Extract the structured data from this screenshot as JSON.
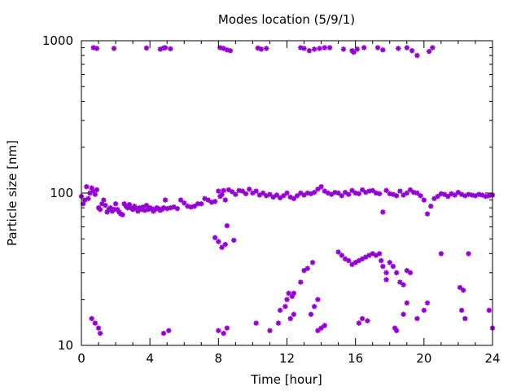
{
  "chart_data": {
    "type": "scatter",
    "title": "Modes location (5/9/1)",
    "xlabel": "Time [hour]",
    "ylabel": "Particle size [nm]",
    "xlim": [
      0,
      24
    ],
    "ylim": [
      10,
      1000
    ],
    "yscale": "log",
    "x_ticks": [
      0,
      4,
      8,
      12,
      16,
      20,
      24
    ],
    "x_tick_labels": [
      "0",
      "4",
      "8",
      "12",
      "16",
      "20",
      "24"
    ],
    "y_ticks": [
      10,
      100,
      1000
    ],
    "y_tick_labels": [
      "10",
      "100",
      "1000"
    ],
    "grid": false,
    "legend": "none",
    "marker_color": "#9400d3",
    "series": [
      {
        "points": [
          [
            0.7,
            900
          ],
          [
            0.9,
            890
          ],
          [
            1.9,
            890
          ],
          [
            3.8,
            895
          ],
          [
            4.6,
            880
          ],
          [
            4.8,
            895
          ],
          [
            4.9,
            900
          ],
          [
            5.2,
            885
          ],
          [
            8.1,
            900
          ],
          [
            8.3,
            890
          ],
          [
            8.5,
            870
          ],
          [
            8.7,
            860
          ],
          [
            10.3,
            895
          ],
          [
            10.5,
            880
          ],
          [
            10.8,
            890
          ],
          [
            12.8,
            900
          ],
          [
            13.0,
            890
          ],
          [
            13.3,
            860
          ],
          [
            13.6,
            880
          ],
          [
            13.9,
            890
          ],
          [
            14.2,
            900
          ],
          [
            14.5,
            900
          ],
          [
            15.3,
            880
          ],
          [
            15.8,
            860
          ],
          [
            15.9,
            840
          ],
          [
            16.1,
            880
          ],
          [
            16.5,
            900
          ],
          [
            17.3,
            900
          ],
          [
            17.6,
            870
          ],
          [
            18.5,
            890
          ],
          [
            19.0,
            900
          ],
          [
            19.3,
            860
          ],
          [
            19.6,
            800
          ],
          [
            20.3,
            850
          ],
          [
            20.5,
            900
          ],
          [
            0.0,
            95
          ],
          [
            0.1,
            85
          ],
          [
            0.2,
            90
          ],
          [
            0.3,
            110
          ],
          [
            0.4,
            92
          ],
          [
            0.5,
            100
          ],
          [
            0.6,
            108
          ],
          [
            0.7,
            103
          ],
          [
            0.8,
            98
          ],
          [
            0.9,
            105
          ],
          [
            1.0,
            80
          ],
          [
            1.1,
            78
          ],
          [
            1.2,
            85
          ],
          [
            1.3,
            90
          ],
          [
            1.4,
            83
          ],
          [
            1.5,
            75
          ],
          [
            1.6,
            78
          ],
          [
            1.7,
            80
          ],
          [
            1.8,
            76
          ],
          [
            1.9,
            78
          ],
          [
            2.0,
            85
          ],
          [
            2.1,
            78
          ],
          [
            2.2,
            75
          ],
          [
            2.3,
            73
          ],
          [
            2.4,
            72
          ],
          [
            2.5,
            85
          ],
          [
            2.6,
            82
          ],
          [
            2.7,
            80
          ],
          [
            2.8,
            84
          ],
          [
            2.9,
            80
          ],
          [
            3.0,
            78
          ],
          [
            3.1,
            82
          ],
          [
            3.2,
            79
          ],
          [
            3.3,
            76
          ],
          [
            3.4,
            80
          ],
          [
            3.5,
            78
          ],
          [
            3.6,
            81
          ],
          [
            3.7,
            77
          ],
          [
            3.8,
            83
          ],
          [
            3.9,
            78
          ],
          [
            4.0,
            80
          ],
          [
            4.1,
            79
          ],
          [
            4.2,
            76
          ],
          [
            4.3,
            78
          ],
          [
            4.4,
            80
          ],
          [
            4.5,
            79
          ],
          [
            4.6,
            77
          ],
          [
            4.7,
            78
          ],
          [
            4.8,
            80
          ],
          [
            4.9,
            90
          ],
          [
            5.0,
            79
          ],
          [
            5.2,
            80
          ],
          [
            5.4,
            81
          ],
          [
            5.6,
            79
          ],
          [
            5.8,
            90
          ],
          [
            6.0,
            86
          ],
          [
            6.2,
            82
          ],
          [
            6.4,
            81
          ],
          [
            6.6,
            82
          ],
          [
            6.8,
            85
          ],
          [
            7.0,
            85
          ],
          [
            7.2,
            92
          ],
          [
            7.4,
            90
          ],
          [
            7.6,
            87
          ],
          [
            7.8,
            88
          ],
          [
            8.0,
            103
          ],
          [
            8.1,
            95
          ],
          [
            8.2,
            98
          ],
          [
            8.3,
            104
          ],
          [
            8.4,
            90
          ],
          [
            8.6,
            105
          ],
          [
            8.8,
            102
          ],
          [
            9.0,
            98
          ],
          [
            9.2,
            104
          ],
          [
            9.4,
            103
          ],
          [
            9.6,
            99
          ],
          [
            9.8,
            106
          ],
          [
            10.0,
            100
          ],
          [
            10.2,
            103
          ],
          [
            10.4,
            97
          ],
          [
            10.6,
            100
          ],
          [
            10.8,
            96
          ],
          [
            11.0,
            98
          ],
          [
            11.2,
            94
          ],
          [
            11.4,
            97
          ],
          [
            11.6,
            93
          ],
          [
            11.8,
            96
          ],
          [
            12.0,
            100
          ],
          [
            12.2,
            94
          ],
          [
            12.4,
            92
          ],
          [
            12.6,
            96
          ],
          [
            12.8,
            100
          ],
          [
            13.0,
            97
          ],
          [
            13.2,
            100
          ],
          [
            13.4,
            99
          ],
          [
            13.6,
            101
          ],
          [
            13.8,
            106
          ],
          [
            14.0,
            110
          ],
          [
            14.2,
            103
          ],
          [
            14.4,
            100
          ],
          [
            14.6,
            98
          ],
          [
            14.8,
            101
          ],
          [
            15.0,
            100
          ],
          [
            15.2,
            96
          ],
          [
            15.4,
            101
          ],
          [
            15.6,
            98
          ],
          [
            15.8,
            104
          ],
          [
            16.0,
            100
          ],
          [
            16.2,
            99
          ],
          [
            16.4,
            105
          ],
          [
            16.6,
            101
          ],
          [
            16.8,
            103
          ],
          [
            17.0,
            104
          ],
          [
            17.2,
            100
          ],
          [
            17.4,
            99
          ],
          [
            17.6,
            75
          ],
          [
            17.8,
            104
          ],
          [
            18.0,
            99
          ],
          [
            18.2,
            98
          ],
          [
            18.4,
            96
          ],
          [
            18.6,
            103
          ],
          [
            18.8,
            97
          ],
          [
            19.0,
            100
          ],
          [
            19.2,
            105
          ],
          [
            19.4,
            101
          ],
          [
            19.6,
            100
          ],
          [
            19.8,
            96
          ],
          [
            20.0,
            90
          ],
          [
            20.2,
            73
          ],
          [
            20.4,
            82
          ],
          [
            20.6,
            92
          ],
          [
            20.8,
            95
          ],
          [
            21.0,
            99
          ],
          [
            21.2,
            98
          ],
          [
            21.4,
            95
          ],
          [
            21.6,
            99
          ],
          [
            21.8,
            97
          ],
          [
            22.0,
            101
          ],
          [
            22.2,
            98
          ],
          [
            22.4,
            96
          ],
          [
            22.6,
            98
          ],
          [
            22.8,
            97
          ],
          [
            23.0,
            96
          ],
          [
            23.2,
            98
          ],
          [
            23.4,
            97
          ],
          [
            23.6,
            95
          ],
          [
            23.8,
            96
          ],
          [
            24.0,
            97
          ],
          [
            7.8,
            51
          ],
          [
            8.0,
            48
          ],
          [
            8.2,
            44
          ],
          [
            8.4,
            46
          ],
          [
            8.5,
            61
          ],
          [
            8.9,
            49
          ],
          [
            13.5,
            35
          ],
          [
            13.2,
            32
          ],
          [
            13.0,
            31
          ],
          [
            12.8,
            26
          ],
          [
            12.4,
            22
          ],
          [
            12.3,
            21
          ],
          [
            12.1,
            22
          ],
          [
            12.0,
            20
          ],
          [
            11.9,
            18
          ],
          [
            11.6,
            17
          ],
          [
            12.2,
            15
          ],
          [
            12.4,
            16
          ],
          [
            13.4,
            16
          ],
          [
            13.6,
            18
          ],
          [
            13.8,
            20
          ],
          [
            15.0,
            41
          ],
          [
            15.2,
            39
          ],
          [
            15.4,
            37
          ],
          [
            15.6,
            36
          ],
          [
            15.8,
            34
          ],
          [
            16.0,
            35
          ],
          [
            16.2,
            36
          ],
          [
            16.4,
            37
          ],
          [
            16.6,
            38
          ],
          [
            16.8,
            39
          ],
          [
            17.0,
            40
          ],
          [
            17.2,
            39
          ],
          [
            17.4,
            40
          ],
          [
            17.5,
            36
          ],
          [
            17.6,
            33
          ],
          [
            17.8,
            30
          ],
          [
            17.8,
            27
          ],
          [
            18.0,
            35
          ],
          [
            18.2,
            33
          ],
          [
            18.4,
            30
          ],
          [
            18.6,
            26
          ],
          [
            18.8,
            25
          ],
          [
            19.0,
            31
          ],
          [
            19.2,
            30
          ],
          [
            0.6,
            15
          ],
          [
            0.8,
            14
          ],
          [
            1.0,
            13
          ],
          [
            1.1,
            12
          ],
          [
            4.8,
            12
          ],
          [
            5.1,
            12.5
          ],
          [
            8.0,
            12.5
          ],
          [
            8.3,
            12
          ],
          [
            8.5,
            13
          ],
          [
            10.2,
            14
          ],
          [
            11.0,
            12.5
          ],
          [
            11.5,
            14
          ],
          [
            13.8,
            12.5
          ],
          [
            14.0,
            13
          ],
          [
            14.2,
            13.5
          ],
          [
            16.2,
            14
          ],
          [
            16.4,
            15
          ],
          [
            16.7,
            14.5
          ],
          [
            18.3,
            13
          ],
          [
            18.4,
            12.5
          ],
          [
            18.8,
            16
          ],
          [
            19.0,
            19
          ],
          [
            19.6,
            15
          ],
          [
            20.0,
            17
          ],
          [
            20.2,
            19
          ],
          [
            21.0,
            40
          ],
          [
            22.1,
            24
          ],
          [
            22.3,
            23
          ],
          [
            22.2,
            17
          ],
          [
            22.4,
            15
          ],
          [
            22.6,
            40
          ],
          [
            23.8,
            17
          ],
          [
            24.0,
            13
          ]
        ]
      }
    ]
  }
}
